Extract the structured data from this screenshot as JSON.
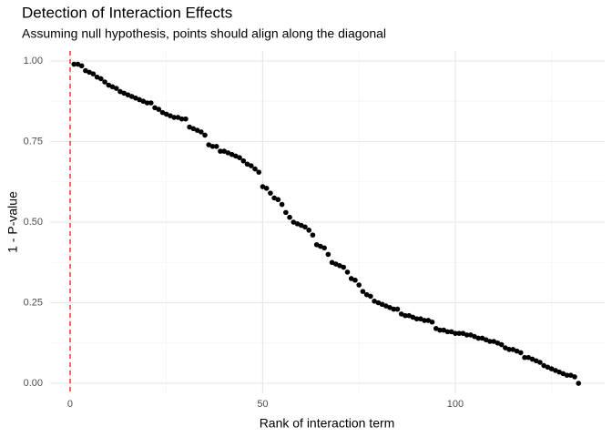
{
  "chart_data": {
    "type": "scatter",
    "title": "Detection of Interaction Effects",
    "subtitle": "Assuming null hypothesis, points should align along the diagonal",
    "x_label": "Rank of interaction term",
    "y_label": "1 - P-value",
    "x": [
      1,
      2,
      3,
      4,
      5,
      6,
      7,
      8,
      9,
      10,
      11,
      12,
      13,
      14,
      15,
      16,
      17,
      18,
      19,
      20,
      21,
      22,
      23,
      24,
      25,
      26,
      27,
      28,
      29,
      30,
      31,
      32,
      33,
      34,
      35,
      36,
      37,
      38,
      39,
      40,
      41,
      42,
      43,
      44,
      45,
      46,
      47,
      48,
      49,
      50,
      51,
      52,
      53,
      54,
      55,
      56,
      57,
      58,
      59,
      60,
      61,
      62,
      63,
      64,
      65,
      66,
      67,
      68,
      69,
      70,
      71,
      72,
      73,
      74,
      75,
      76,
      77,
      78,
      79,
      80,
      81,
      82,
      83,
      84,
      85,
      86,
      87,
      88,
      89,
      90,
      91,
      92,
      93,
      94,
      95,
      96,
      97,
      98,
      99,
      100,
      101,
      102,
      103,
      104,
      105,
      106,
      107,
      108,
      109,
      110,
      111,
      112,
      113,
      114,
      115,
      116,
      117,
      118,
      119,
      120,
      121,
      122,
      123,
      124,
      125,
      126,
      127,
      128,
      129,
      130,
      131,
      132
    ],
    "values": [
      0.99,
      0.99,
      0.985,
      0.97,
      0.965,
      0.96,
      0.95,
      0.945,
      0.935,
      0.925,
      0.92,
      0.915,
      0.905,
      0.9,
      0.895,
      0.89,
      0.885,
      0.88,
      0.875,
      0.87,
      0.87,
      0.855,
      0.85,
      0.84,
      0.835,
      0.83,
      0.825,
      0.825,
      0.82,
      0.82,
      0.795,
      0.79,
      0.785,
      0.78,
      0.77,
      0.74,
      0.735,
      0.735,
      0.72,
      0.72,
      0.715,
      0.71,
      0.705,
      0.7,
      0.69,
      0.68,
      0.675,
      0.665,
      0.655,
      0.61,
      0.605,
      0.59,
      0.575,
      0.57,
      0.555,
      0.53,
      0.515,
      0.5,
      0.495,
      0.49,
      0.485,
      0.475,
      0.46,
      0.43,
      0.425,
      0.42,
      0.4,
      0.375,
      0.37,
      0.365,
      0.36,
      0.345,
      0.325,
      0.32,
      0.305,
      0.285,
      0.275,
      0.27,
      0.255,
      0.25,
      0.245,
      0.24,
      0.235,
      0.23,
      0.23,
      0.215,
      0.21,
      0.21,
      0.205,
      0.2,
      0.2,
      0.195,
      0.195,
      0.19,
      0.17,
      0.165,
      0.165,
      0.16,
      0.16,
      0.155,
      0.155,
      0.155,
      0.15,
      0.15,
      0.145,
      0.14,
      0.14,
      0.135,
      0.13,
      0.13,
      0.125,
      0.12,
      0.11,
      0.105,
      0.105,
      0.1,
      0.095,
      0.08,
      0.08,
      0.075,
      0.07,
      0.065,
      0.055,
      0.05,
      0.045,
      0.04,
      0.035,
      0.03,
      0.025,
      0.025,
      0.02,
      0.0
    ],
    "color": "#000000",
    "xlim": [
      -5.2,
      138.8
    ],
    "ylim": [
      -0.031,
      1.031
    ],
    "xticks": [
      0,
      50,
      100
    ],
    "yticks": [
      {
        "value": 0,
        "label": "0.00"
      },
      {
        "value": 0.25,
        "label": "0.25"
      },
      {
        "value": 0.5,
        "label": "0.50"
      },
      {
        "value": 0.75,
        "label": "0.75"
      },
      {
        "value": 1,
        "label": "1.00"
      }
    ],
    "x_minor_grid": [
      25,
      75,
      125
    ],
    "y_minor_grid": [
      0.125,
      0.375,
      0.625,
      0.875
    ],
    "grid": true,
    "reference_line": {
      "x": 0,
      "color": "#ff0000"
    }
  }
}
